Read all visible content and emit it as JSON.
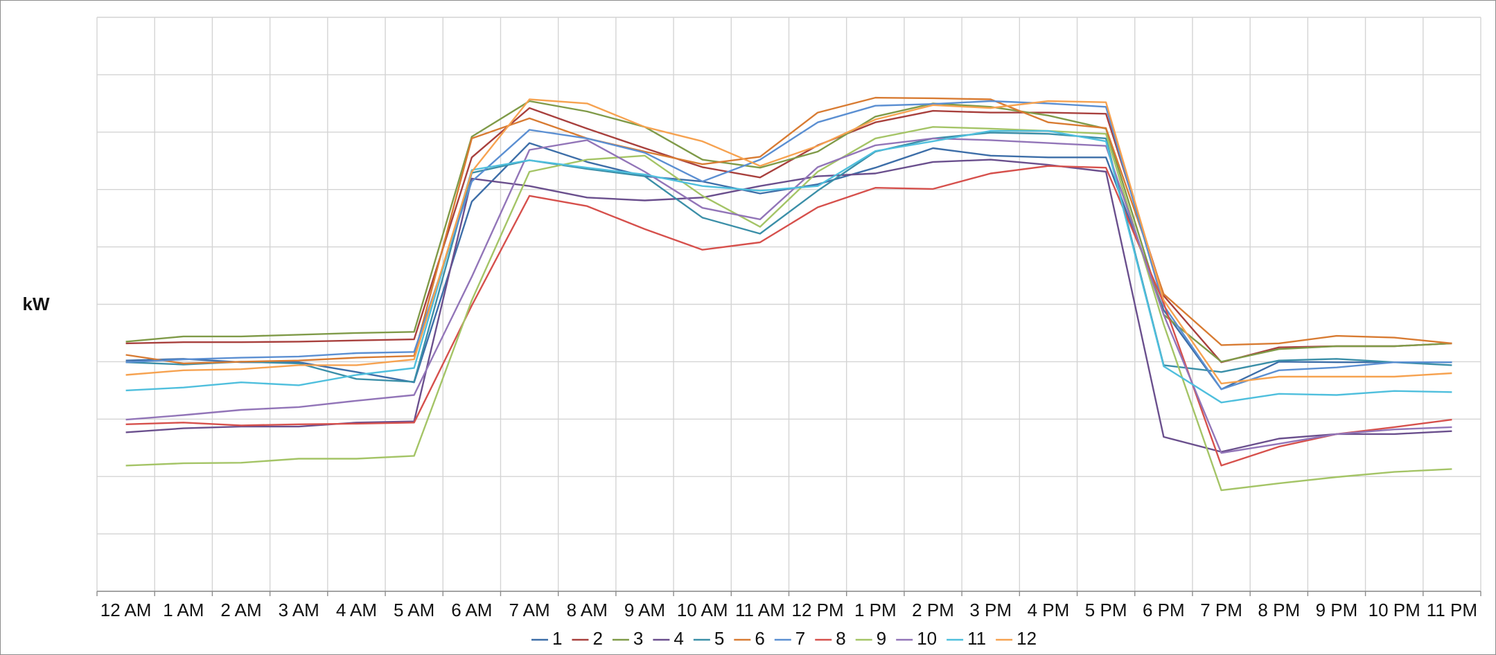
{
  "chart_data": {
    "type": "line",
    "ylabel": "kW",
    "categories": [
      "12 AM",
      "1 AM",
      "2 AM",
      "3 AM",
      "4 AM",
      "5 AM",
      "6 AM",
      "7 AM",
      "8 AM",
      "9 AM",
      "10 AM",
      "11 AM",
      "12 PM",
      "1 PM",
      "2 PM",
      "3 PM",
      "4 PM",
      "5 PM",
      "6 PM",
      "7 PM",
      "8 PM",
      "9 PM",
      "10 PM",
      "11 PM"
    ],
    "ylim": [
      0,
      100
    ],
    "yticks": [
      0,
      10,
      20,
      30,
      40,
      50,
      60,
      70,
      80,
      90,
      100
    ],
    "grid": true,
    "legend": "bottom",
    "series": [
      {
        "name": "1",
        "color": "#3d6ea8",
        "values": [
          40.2,
          40.5,
          39.9,
          39.9,
          38.2,
          36.4,
          67.9,
          78.1,
          74.8,
          72.3,
          71.4,
          69.3,
          70.9,
          73.8,
          77.2,
          75.9,
          75.6,
          75.6,
          49.0,
          35.2,
          40.0,
          39.9,
          39.9,
          39.9
        ]
      },
      {
        "name": "2",
        "color": "#a8403d",
        "values": [
          43.2,
          43.4,
          43.4,
          43.5,
          43.7,
          43.9,
          75.6,
          84.2,
          80.6,
          77.2,
          73.9,
          72.1,
          77.7,
          81.7,
          83.7,
          83.4,
          83.4,
          83.2,
          51.5,
          39.9,
          42.5,
          42.7,
          42.7,
          43.2
        ]
      },
      {
        "name": "3",
        "color": "#7f9a48",
        "values": [
          43.5,
          44.4,
          44.4,
          44.7,
          45.0,
          45.2,
          79.2,
          85.4,
          83.6,
          80.9,
          75.2,
          73.8,
          76.6,
          82.7,
          85.0,
          84.4,
          82.9,
          80.6,
          48.2,
          40.0,
          42.2,
          42.7,
          42.7,
          43.2
        ]
      },
      {
        "name": "4",
        "color": "#6a4f8d",
        "values": [
          27.7,
          28.4,
          28.7,
          28.7,
          29.4,
          29.6,
          71.9,
          70.6,
          68.6,
          68.1,
          68.6,
          70.6,
          72.3,
          72.8,
          74.8,
          75.2,
          74.3,
          73.1,
          26.9,
          24.3,
          26.6,
          27.4,
          27.4,
          27.9
        ]
      },
      {
        "name": "5",
        "color": "#3b8fa8",
        "values": [
          39.9,
          39.5,
          40.0,
          39.7,
          37.0,
          36.5,
          72.9,
          75.1,
          73.6,
          72.3,
          65.1,
          62.3,
          69.8,
          76.6,
          78.9,
          79.9,
          79.7,
          78.9,
          39.4,
          38.2,
          40.2,
          40.5,
          39.9,
          39.4
        ]
      },
      {
        "name": "6",
        "color": "#d87b32",
        "values": [
          41.2,
          39.7,
          40.0,
          40.2,
          40.7,
          41.0,
          78.9,
          82.4,
          78.9,
          76.6,
          74.4,
          75.7,
          83.4,
          86.0,
          85.9,
          85.7,
          81.7,
          80.7,
          51.8,
          42.9,
          43.2,
          44.5,
          44.2,
          43.2
        ]
      },
      {
        "name": "7",
        "color": "#5b8fd2",
        "values": [
          39.9,
          40.4,
          40.7,
          40.9,
          41.5,
          41.7,
          71.4,
          80.4,
          78.9,
          76.4,
          71.4,
          75.2,
          81.7,
          84.6,
          84.9,
          85.4,
          85.0,
          84.4,
          49.8,
          35.2,
          38.5,
          39.0,
          39.9,
          39.9
        ]
      },
      {
        "name": "8",
        "color": "#d6504c",
        "values": [
          29.1,
          29.4,
          28.9,
          29.1,
          29.2,
          29.4,
          49.8,
          68.9,
          67.1,
          63.1,
          59.5,
          60.8,
          66.9,
          70.3,
          70.1,
          72.8,
          74.1,
          73.8,
          50.2,
          21.9,
          25.2,
          27.4,
          28.6,
          29.9
        ]
      },
      {
        "name": "9",
        "color": "#a4c466",
        "values": [
          21.9,
          22.3,
          22.4,
          23.1,
          23.1,
          23.6,
          50.7,
          73.1,
          75.2,
          75.9,
          68.9,
          63.5,
          73.1,
          78.9,
          80.9,
          80.6,
          80.2,
          79.7,
          46.5,
          17.6,
          18.8,
          19.9,
          20.8,
          21.3
        ]
      },
      {
        "name": "10",
        "color": "#9275b8",
        "values": [
          29.9,
          30.7,
          31.6,
          32.1,
          33.2,
          34.2,
          54.8,
          76.9,
          78.6,
          73.1,
          66.8,
          64.8,
          73.9,
          77.7,
          78.9,
          78.6,
          78.1,
          77.6,
          48.2,
          24.1,
          25.7,
          27.4,
          28.2,
          28.6
        ]
      },
      {
        "name": "11",
        "color": "#4fbfdd",
        "values": [
          35.0,
          35.5,
          36.4,
          35.9,
          37.7,
          38.9,
          73.4,
          75.1,
          73.8,
          72.6,
          70.6,
          69.8,
          70.6,
          76.7,
          78.4,
          80.2,
          80.2,
          78.4,
          39.2,
          32.9,
          34.4,
          34.2,
          34.9,
          34.7
        ]
      },
      {
        "name": "12",
        "color": "#f6a250",
        "values": [
          37.7,
          38.5,
          38.7,
          39.4,
          39.4,
          40.4,
          73.1,
          85.7,
          85.0,
          80.9,
          78.4,
          74.1,
          77.6,
          82.2,
          84.7,
          84.2,
          85.4,
          85.2,
          50.7,
          36.2,
          37.4,
          37.4,
          37.4,
          38.0
        ]
      }
    ]
  }
}
